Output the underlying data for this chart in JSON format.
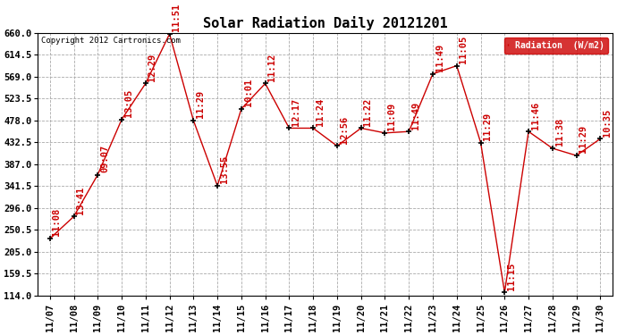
{
  "title": "Solar Radiation Daily 20121201",
  "copyright_text": "Copyright 2012 Cartronics.com",
  "legend_label": "Radiation  (W/m2)",
  "x_labels": [
    "11/07",
    "11/08",
    "11/09",
    "11/10",
    "11/11",
    "11/12",
    "11/13",
    "11/14",
    "11/15",
    "11/16",
    "11/17",
    "11/18",
    "11/19",
    "11/20",
    "11/21",
    "11/22",
    "11/23",
    "11/24",
    "11/25",
    "11/26",
    "11/27",
    "11/28",
    "11/29",
    "11/30"
  ],
  "y_values": [
    232,
    278,
    365,
    480,
    555,
    658,
    478,
    342,
    502,
    555,
    462,
    462,
    425,
    462,
    452,
    455,
    575,
    592,
    432,
    120,
    455,
    420,
    405,
    440
  ],
  "time_labels": [
    "11:08",
    "13:41",
    "09:07",
    "13:05",
    "12:29",
    "11:51",
    "11:29",
    "13:55",
    "10:01",
    "11:12",
    "12:17",
    "11:24",
    "12:56",
    "11:22",
    "11:09",
    "11:49",
    "11:49",
    "11:05",
    "11:29",
    "11:15",
    "11:46",
    "11:38",
    "11:29",
    "10:35"
  ],
  "y_ticks": [
    114.0,
    159.5,
    205.0,
    250.5,
    296.0,
    341.5,
    387.0,
    432.5,
    478.0,
    523.5,
    569.0,
    614.5,
    660.0
  ],
  "ylim": [
    114.0,
    660.0
  ],
  "line_color": "#cc0000",
  "marker_color": "#000000",
  "bg_color": "#ffffff",
  "grid_color": "#aaaaaa",
  "title_fontsize": 11,
  "tick_fontsize": 7.5,
  "annotation_fontsize": 7.5,
  "legend_bg_color": "#cc0000",
  "legend_text_color": "#ffffff"
}
